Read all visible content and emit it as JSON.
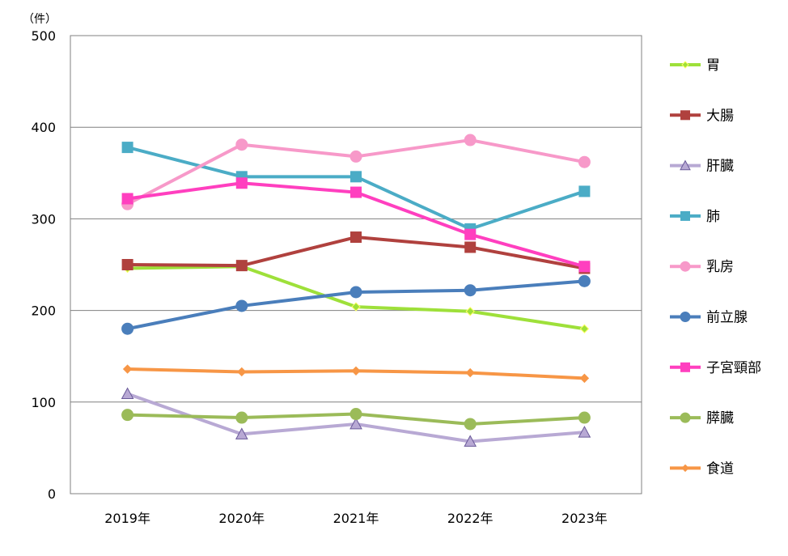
{
  "chart_data": {
    "type": "line",
    "unit_label": "（件）",
    "x": [
      "2019年",
      "2020年",
      "2021年",
      "2022年",
      "2023年"
    ],
    "ylim": [
      0,
      500
    ],
    "yticks": [
      0,
      100,
      200,
      300,
      400,
      500
    ],
    "grid": true,
    "legend_position": "right",
    "series": [
      {
        "name": "胃",
        "color": "#9ee03a",
        "marker": "diamond",
        "values": [
          246,
          248,
          204,
          199,
          180
        ]
      },
      {
        "name": "大腸",
        "color": "#b0413e",
        "marker": "square",
        "values": [
          250,
          249,
          280,
          269,
          246
        ]
      },
      {
        "name": "肝臓",
        "color": "#b8a9d4",
        "marker": "triangle",
        "values": [
          109,
          65,
          76,
          57,
          67
        ]
      },
      {
        "name": "肺",
        "color": "#4bacc6",
        "marker": "square",
        "values": [
          378,
          346,
          346,
          289,
          330
        ]
      },
      {
        "name": "乳房",
        "color": "#f799c9",
        "marker": "circle",
        "values": [
          316,
          381,
          368,
          386,
          362
        ]
      },
      {
        "name": "前立腺",
        "color": "#4a7ebb",
        "marker": "circle",
        "values": [
          180,
          205,
          220,
          222,
          232
        ]
      },
      {
        "name": "子宮頸部",
        "color": "#ff3fbf",
        "marker": "square",
        "values": [
          322,
          339,
          329,
          283,
          248
        ]
      },
      {
        "name": "膵臓",
        "color": "#9bbb59",
        "marker": "circle",
        "values": [
          86,
          83,
          87,
          76,
          83
        ]
      },
      {
        "name": "食道",
        "color": "#f79646",
        "marker": "diamond",
        "values": [
          136,
          133,
          134,
          132,
          126
        ]
      }
    ]
  }
}
